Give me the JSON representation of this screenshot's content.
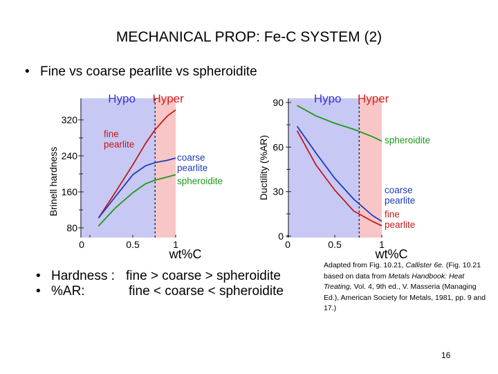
{
  "slide": {
    "title": "MECHANICAL PROP:  Fe-C SYSTEM (2)",
    "bullet_top": "Fine vs coarse pearlite vs spheroidite",
    "bullets_bottom": [
      {
        "label": "Hardness :",
        "text": "fine > coarse > spheroidite"
      },
      {
        "label": "%AR:",
        "text": "fine < coarse < spheroidite"
      }
    ],
    "caption": {
      "prefix": "Adapted from Fig. 10.21, ",
      "book": "Callister 6e.",
      "line2a": "(Fig. 10.21 based on data from ",
      "line2b": "Metals Handbook:  Heat Treating,",
      "line2c": " Vol. 4, 9th ed., V. Masseria (Managing Ed.), American Society for Metals, 1981, pp. 9 and 17.)"
    },
    "page_number": "16"
  },
  "colors": {
    "hypo_bg": "#c8c8f4",
    "hyper_bg": "#f8c6c6",
    "hypo_text": "#3434d8",
    "hyper_text": "#d42020",
    "fine": "#c41818",
    "coarse": "#1c3cb8",
    "spheroidite": "#1a9a1a"
  },
  "chart_data": [
    {
      "type": "line",
      "title": "",
      "xlabel": "wt%C",
      "ylabel": "Brinell hardness",
      "xlim": [
        0,
        1.0
      ],
      "ylim": [
        60,
        350
      ],
      "x_ticks": [
        "0",
        "0.5",
        "1"
      ],
      "y_ticks": [
        "80",
        "160",
        "240",
        "320"
      ],
      "regions": [
        {
          "name": "Hypo",
          "from": 0,
          "to": 0.76
        },
        {
          "name": "Hyper",
          "from": 0.76,
          "to": 1.0
        }
      ],
      "eutectoid_wt": 0.76,
      "series": [
        {
          "name": "fine pearlite",
          "label_lines": [
            "fine",
            "pearlite"
          ],
          "color_key": "fine",
          "x": [
            0.1,
            0.3,
            0.5,
            0.65,
            0.76,
            0.9,
            1.0
          ],
          "y": [
            102,
            160,
            220,
            268,
            298,
            328,
            342
          ]
        },
        {
          "name": "coarse pearlite",
          "label_lines": [
            "coarse",
            "pearlite"
          ],
          "color_key": "coarse",
          "x": [
            0.1,
            0.3,
            0.5,
            0.65,
            0.76,
            0.9,
            1.0
          ],
          "y": [
            102,
            150,
            198,
            218,
            225,
            230,
            235
          ]
        },
        {
          "name": "spheroidite",
          "label_lines": [
            "spheroidite"
          ],
          "color_key": "spheroidite",
          "x": [
            0.1,
            0.3,
            0.5,
            0.65,
            0.76,
            0.9,
            1.0
          ],
          "y": [
            84,
            125,
            158,
            178,
            186,
            193,
            198
          ]
        }
      ]
    },
    {
      "type": "line",
      "title": "",
      "xlabel": "wt%C",
      "ylabel": "Ductility (%AR)",
      "xlim": [
        0,
        1.0
      ],
      "ylim": [
        0,
        92
      ],
      "x_ticks": [
        "0",
        "0.5",
        "1"
      ],
      "y_ticks": [
        "0",
        "30",
        "60",
        "90"
      ],
      "regions": [
        {
          "name": "Hypo",
          "from": 0,
          "to": 0.76
        },
        {
          "name": "Hyper",
          "from": 0.76,
          "to": 1.0
        }
      ],
      "eutectoid_wt": 0.76,
      "series": [
        {
          "name": "spheroidite",
          "label_lines": [
            "spheroidite"
          ],
          "color_key": "spheroidite",
          "x": [
            0.1,
            0.3,
            0.5,
            0.7,
            0.9,
            1.0
          ],
          "y": [
            88,
            81,
            76,
            72,
            67,
            64
          ]
        },
        {
          "name": "coarse pearlite",
          "label_lines": [
            "coarse",
            "pearlite"
          ],
          "color_key": "coarse",
          "x": [
            0.1,
            0.3,
            0.5,
            0.7,
            0.9,
            1.0
          ],
          "y": [
            74,
            56,
            39,
            25,
            14,
            10
          ]
        },
        {
          "name": "fine pearlite",
          "label_lines": [
            "fine",
            "pearlite"
          ],
          "color_key": "fine",
          "x": [
            0.1,
            0.3,
            0.5,
            0.7,
            0.9,
            1.0
          ],
          "y": [
            71,
            48,
            31,
            17,
            10,
            7
          ]
        }
      ]
    }
  ]
}
